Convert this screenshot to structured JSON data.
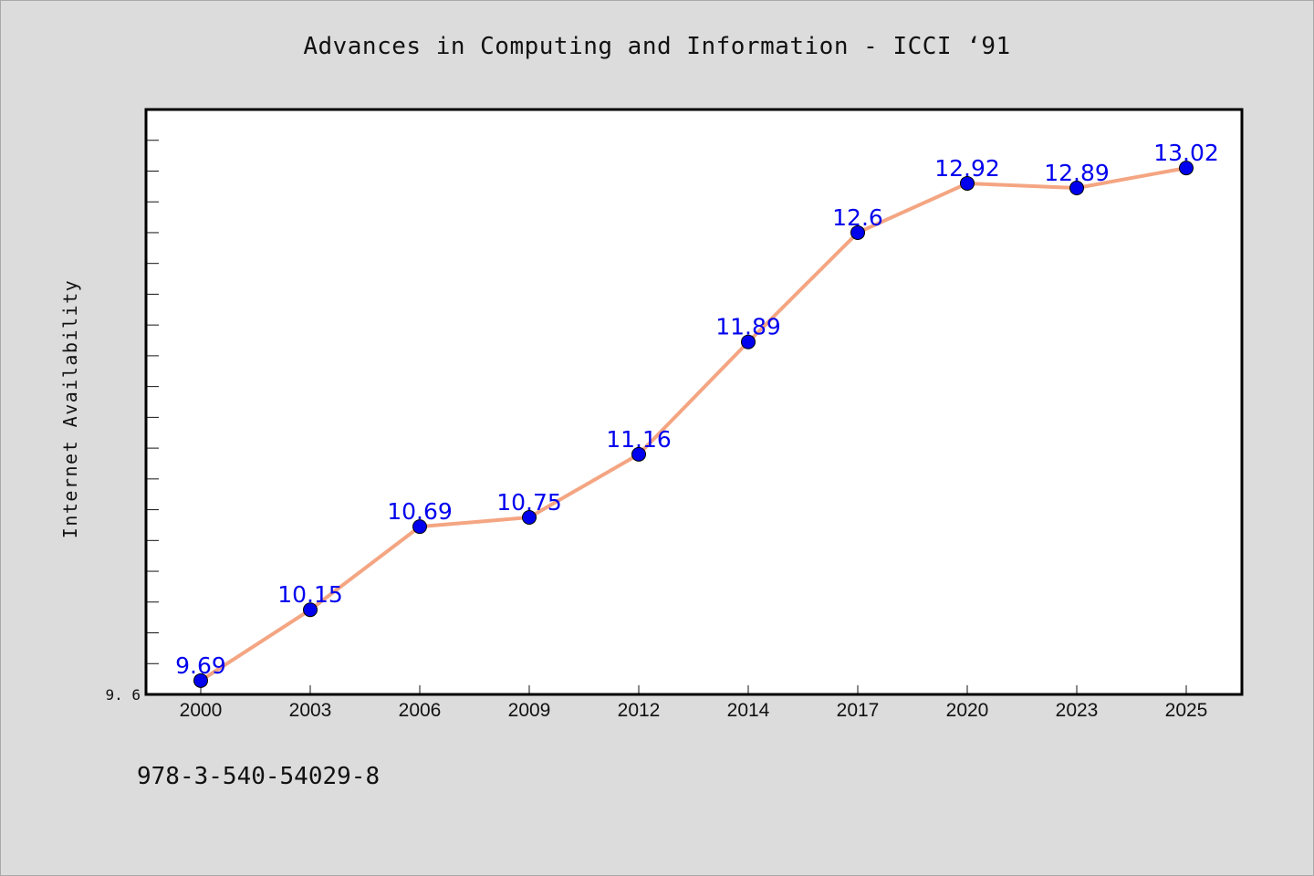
{
  "chart_data": {
    "type": "line",
    "title": "Advances in Computing and Information - ICCI  ‘91",
    "xlabel": "",
    "ylabel": "Internet Availability",
    "categories": [
      "2000",
      "2003",
      "2006",
      "2009",
      "2012",
      "2014",
      "2017",
      "2020",
      "2023",
      "2025"
    ],
    "series": [
      {
        "values": [
          9.69,
          10.15,
          10.69,
          10.75,
          11.16,
          11.89,
          12.6,
          12.92,
          12.89,
          13.02
        ],
        "data_labels": [
          "9.69",
          "10.15",
          "10.69",
          "10.75",
          "11.16",
          "11.89",
          "12.6",
          "12.92",
          "12.89",
          "13.02"
        ],
        "line_color": "#f4a582",
        "marker_color": "#0000ee"
      }
    ],
    "ylim": [
      9.6,
      13.4
    ],
    "ytick_labels": [
      "9.6"
    ],
    "grid": false,
    "legend": "none",
    "background": "#dcdcdc",
    "plot_background": "#ffffff"
  },
  "footer": {
    "text": "978-3-540-54029-8"
  }
}
